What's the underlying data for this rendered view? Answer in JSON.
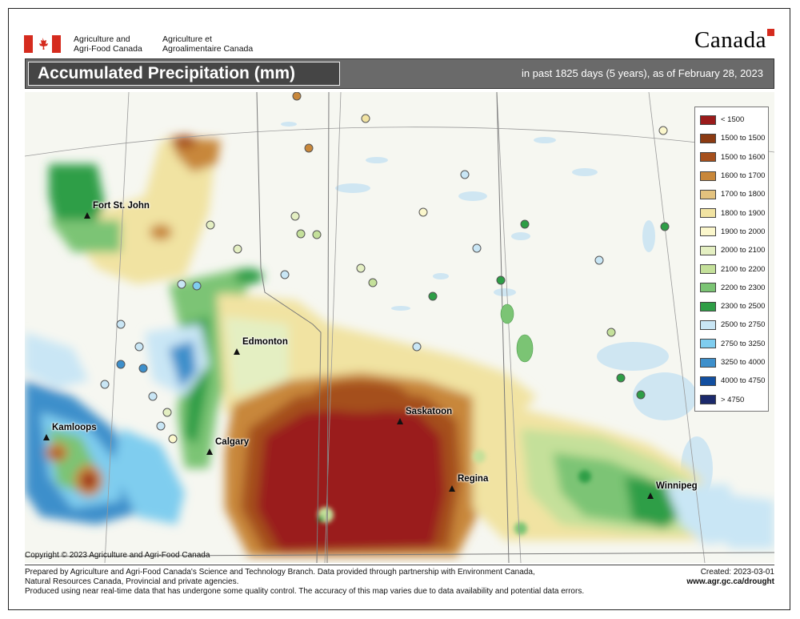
{
  "header": {
    "agency_en_line1": "Agriculture and",
    "agency_en_line2": "Agri-Food Canada",
    "agency_fr_line1": "Agriculture et",
    "agency_fr_line2": "Agroalimentaire Canada",
    "wordmark": "Canada"
  },
  "title": {
    "main": "Accumulated Precipitation (mm)",
    "subtitle": "in past 1825 days (5 years), as of February 28, 2023"
  },
  "legend": [
    {
      "label": "< 1500",
      "color": "#9a1b1b"
    },
    {
      "label": "1500 to 1500",
      "color": "#8b3a12"
    },
    {
      "label": "1500 to 1600",
      "color": "#a54f1c"
    },
    {
      "label": "1600 to 1700",
      "color": "#c8873a"
    },
    {
      "label": "1700 to 1800",
      "color": "#e3c27e"
    },
    {
      "label": "1800 to 1900",
      "color": "#f1e3a2"
    },
    {
      "label": "1900 to 2000",
      "color": "#fbf7cc"
    },
    {
      "label": "2000 to 2100",
      "color": "#e4efc2"
    },
    {
      "label": "2100 to 2200",
      "color": "#c4e09a"
    },
    {
      "label": "2200 to 2300",
      "color": "#7bc474"
    },
    {
      "label": "2300 to 2500",
      "color": "#2e9e46"
    },
    {
      "label": "2500 to 2750",
      "color": "#c9e6f5"
    },
    {
      "label": "2750 to 3250",
      "color": "#7fcdef"
    },
    {
      "label": "3250 to 4000",
      "color": "#3d8fcb"
    },
    {
      "label": "4000 to 4750",
      "color": "#124fa0"
    },
    {
      "label": "> 4750",
      "color": "#1c2a6c"
    }
  ],
  "cities": [
    {
      "name": "Fort St. John"
    },
    {
      "name": "Edmonton"
    },
    {
      "name": "Saskatoon"
    },
    {
      "name": "Kamloops"
    },
    {
      "name": "Calgary"
    },
    {
      "name": "Regina"
    },
    {
      "name": "Winnipeg"
    }
  ],
  "footer": {
    "copyright": "Copyright © 2023 Agriculture and Agri-Food Canada",
    "line1": "Prepared by Agriculture and Agri-Food Canada's Science and Technology Branch. Data provided through partnership with Environment Canada,",
    "line2": "Natural Resources Canada, Provincial and private agencies.",
    "line3": "Produced using near real-time data that has undergone some quality control. The accuracy of this map varies due to data availability and potential data errors.",
    "created": "Created: 2023-03-01",
    "url": "www.agr.gc.ca/drought"
  }
}
